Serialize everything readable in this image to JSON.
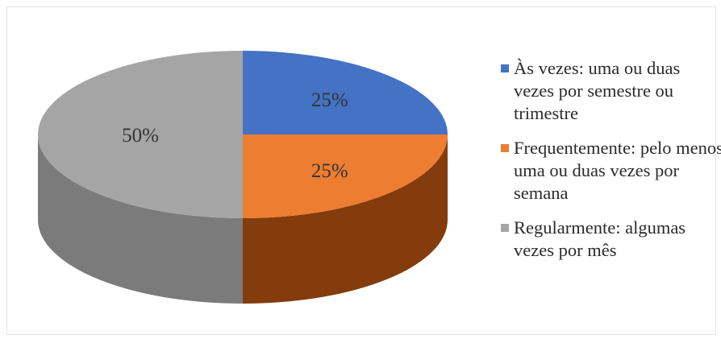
{
  "chart_data": {
    "type": "pie",
    "title": "",
    "slices": [
      {
        "label": "Às vezes: uma ou duas vezes por semestre ou trimestre",
        "value": 25,
        "display": "25%",
        "color": "#4472c4",
        "side_color": "#2f528f"
      },
      {
        "label": "Frequentemente: pelo menos uma ou duas vezes por semana",
        "value": 25,
        "display": "25%",
        "color": "#ed7d31",
        "side_color": "#843c0c"
      },
      {
        "label": "Regularmente: algumas vezes por mês",
        "value": 50,
        "display": "50%",
        "color": "#a5a5a5",
        "side_color": "#7b7b7b"
      }
    ],
    "legend_position": "right",
    "style": "3d"
  }
}
